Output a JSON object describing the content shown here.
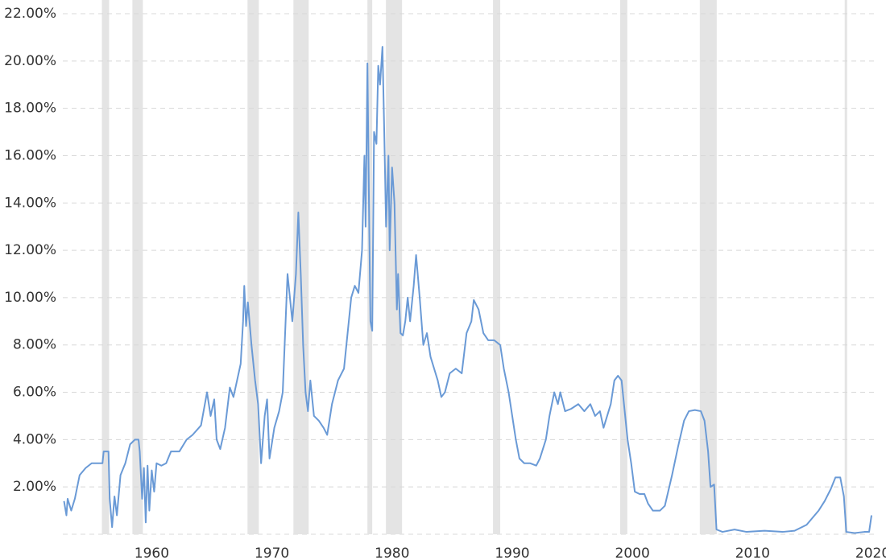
{
  "chart_data": {
    "type": "line",
    "color": "#6a9ad6",
    "band_color": "#e4e4e4",
    "grid": true,
    "xlim": [
      1952.6,
      2020.1
    ],
    "ylim": [
      0,
      22
    ],
    "xticks": [
      1960,
      1970,
      1980,
      1990,
      2000,
      2010,
      2020
    ],
    "yticks": [
      {
        "value": 2,
        "label": "2.00%"
      },
      {
        "value": 4,
        "label": "4.00%"
      },
      {
        "value": 6,
        "label": "6.00%"
      },
      {
        "value": 8,
        "label": "8.00%"
      },
      {
        "value": 10,
        "label": "10.00%"
      },
      {
        "value": 12,
        "label": "12.00%"
      },
      {
        "value": 14,
        "label": "14.00%"
      },
      {
        "value": 16,
        "label": "16.00%"
      },
      {
        "value": 18,
        "label": "18.00%"
      },
      {
        "value": 20,
        "label": "20.00%"
      },
      {
        "value": 22,
        "label": "22.00%"
      }
    ],
    "bands": [
      [
        1955.85,
        1956.45
      ],
      [
        1958.39,
        1959.26
      ],
      [
        1967.97,
        1968.91
      ],
      [
        1971.79,
        1973.06
      ],
      [
        1977.95,
        1978.35
      ],
      [
        1979.49,
        1980.83
      ],
      [
        1988.4,
        1989.0
      ],
      [
        1998.98,
        1999.58
      ],
      [
        2005.61,
        2007.02
      ],
      [
        2017.67,
        2017.87
      ]
    ],
    "x": [
      1952.7,
      1952.9,
      1953.0,
      1953.3,
      1953.6,
      1954.0,
      1954.5,
      1955.0,
      1955.5,
      1955.9,
      1956.0,
      1956.4,
      1956.5,
      1956.7,
      1956.9,
      1957.1,
      1957.4,
      1957.8,
      1958.2,
      1958.6,
      1958.9,
      1959.0,
      1959.2,
      1959.35,
      1959.5,
      1959.65,
      1959.8,
      1960.0,
      1960.2,
      1960.4,
      1960.8,
      1961.2,
      1961.6,
      1962.3,
      1962.9,
      1963.4,
      1964.1,
      1964.6,
      1964.9,
      1965.2,
      1965.4,
      1965.7,
      1966.1,
      1966.5,
      1966.8,
      1967.1,
      1967.4,
      1967.6,
      1967.7,
      1967.85,
      1968.0,
      1968.3,
      1968.6,
      1968.85,
      1969.1,
      1969.4,
      1969.6,
      1969.8,
      1970.2,
      1970.6,
      1970.9,
      1971.3,
      1971.5,
      1971.7,
      1972.0,
      1972.2,
      1972.4,
      1972.6,
      1972.8,
      1973.0,
      1973.2,
      1973.5,
      1973.9,
      1974.3,
      1974.6,
      1975.0,
      1975.5,
      1976.0,
      1976.3,
      1976.6,
      1976.9,
      1977.2,
      1977.5,
      1977.7,
      1977.8,
      1977.95,
      1978.1,
      1978.2,
      1978.35,
      1978.5,
      1978.7,
      1978.85,
      1979.0,
      1979.2,
      1979.35,
      1979.5,
      1979.7,
      1979.8,
      1980.0,
      1980.2,
      1980.4,
      1980.5,
      1980.7,
      1980.9,
      1981.1,
      1981.3,
      1981.5,
      1981.8,
      1982.0,
      1982.3,
      1982.6,
      1982.9,
      1983.2,
      1983.5,
      1983.8,
      1984.1,
      1984.4,
      1984.8,
      1985.3,
      1985.8,
      1986.2,
      1986.6,
      1986.8,
      1987.2,
      1987.6,
      1988.0,
      1988.5,
      1989.0,
      1989.3,
      1989.7,
      1990.0,
      1990.3,
      1990.6,
      1991.0,
      1991.5,
      1992.0,
      1992.3,
      1992.8,
      1993.1,
      1993.5,
      1993.8,
      1994.0,
      1994.4,
      1994.9,
      1995.5,
      1996.0,
      1996.5,
      1996.9,
      1997.3,
      1997.6,
      1997.9,
      1998.2,
      1998.5,
      1998.8,
      1999.1,
      1999.3,
      1999.6,
      1999.9,
      2000.2,
      2000.6,
      2001.0,
      2001.3,
      2001.7,
      2002.3,
      2002.7,
      2003.3,
      2003.8,
      2004.3,
      2004.7,
      2005.2,
      2005.7,
      2006.0,
      2006.3,
      2006.5,
      2006.8,
      2007.0,
      2007.5,
      2008.5,
      2009.5,
      2011.0,
      2012.5,
      2013.5,
      2014.5,
      2015.0,
      2015.5,
      2016.0,
      2016.5,
      2016.9,
      2017.3,
      2017.6,
      2017.8,
      2018.5,
      2019.3,
      2019.7,
      2019.9
    ],
    "values": [
      1.4,
      0.8,
      1.5,
      1.0,
      1.5,
      2.5,
      2.8,
      3.0,
      3.0,
      3.0,
      3.5,
      3.5,
      1.5,
      0.3,
      1.6,
      0.8,
      2.5,
      3.0,
      3.8,
      4.0,
      4.0,
      3.5,
      1.5,
      2.8,
      0.5,
      2.9,
      1.0,
      2.7,
      1.8,
      3.0,
      2.9,
      3.0,
      3.5,
      3.5,
      4.0,
      4.2,
      4.6,
      6.0,
      5.0,
      5.7,
      4.0,
      3.6,
      4.5,
      6.2,
      5.8,
      6.5,
      7.2,
      9.0,
      10.5,
      8.8,
      9.8,
      8.0,
      6.5,
      5.5,
      3.0,
      5.0,
      5.7,
      3.2,
      4.5,
      5.2,
      6.0,
      11.0,
      10.0,
      9.0,
      11.0,
      13.6,
      11.0,
      8.0,
      6.0,
      5.2,
      6.5,
      5.0,
      4.8,
      4.5,
      4.2,
      5.5,
      6.5,
      7.0,
      8.5,
      10.0,
      10.5,
      10.2,
      12.0,
      16.0,
      13.0,
      19.9,
      13.0,
      9.0,
      8.6,
      17.0,
      16.5,
      19.8,
      19.0,
      20.6,
      17.0,
      13.0,
      16.0,
      12.0,
      15.5,
      14.0,
      9.5,
      11.0,
      8.5,
      8.4,
      9.0,
      10.0,
      9.0,
      10.5,
      11.8,
      10.0,
      8.0,
      8.5,
      7.5,
      7.0,
      6.5,
      5.8,
      6.0,
      6.8,
      7.0,
      6.8,
      8.5,
      9.0,
      9.9,
      9.5,
      8.5,
      8.2,
      8.2,
      8.0,
      7.0,
      6.0,
      5.0,
      4.0,
      3.2,
      3.0,
      3.0,
      2.9,
      3.2,
      4.0,
      5.0,
      6.0,
      5.5,
      6.0,
      5.2,
      5.3,
      5.5,
      5.2,
      5.5,
      5.0,
      5.2,
      4.5,
      5.0,
      5.5,
      6.5,
      6.7,
      6.5,
      5.5,
      4.0,
      3.0,
      1.8,
      1.7,
      1.7,
      1.3,
      1.0,
      1.0,
      1.2,
      2.5,
      3.7,
      4.8,
      5.2,
      5.25,
      5.2,
      4.8,
      3.5,
      2.0,
      2.1,
      0.2,
      0.1,
      0.2,
      0.1,
      0.15,
      0.1,
      0.15,
      0.4,
      0.7,
      1.0,
      1.4,
      1.9,
      2.4,
      2.4,
      1.6,
      0.1,
      0.05,
      0.1,
      0.1,
      0.8
    ]
  }
}
